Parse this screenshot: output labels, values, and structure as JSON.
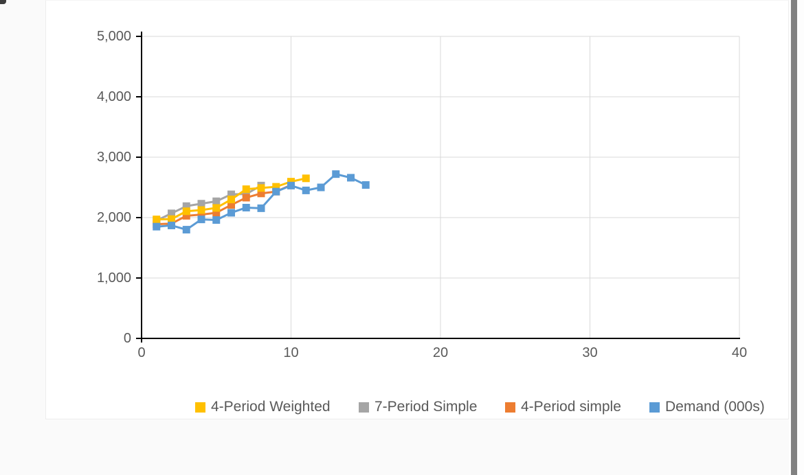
{
  "chart_data": {
    "type": "line",
    "title": "",
    "xlabel": "",
    "ylabel": "",
    "xlim": [
      0,
      40
    ],
    "ylim": [
      0,
      5000
    ],
    "grid": true,
    "legend_position": "bottom",
    "x_ticks": [
      0,
      10,
      20,
      30,
      40
    ],
    "x_tick_labels": [
      "0",
      "10",
      "20",
      "30",
      "40"
    ],
    "y_ticks": [
      0,
      1000,
      2000,
      3000,
      4000,
      5000
    ],
    "y_tick_labels": [
      "0",
      "1,000",
      "2,000",
      "3,000",
      "4,000",
      "5,000"
    ],
    "marker": "square",
    "colors": {
      "gridline": "#d9d9d9",
      "axis": "#000000",
      "label_text": "#595959"
    },
    "series": [
      {
        "name": "4-Period Weighted",
        "color": "#FFC000",
        "x": [
          1,
          2,
          3,
          4,
          5,
          6,
          7,
          8,
          9,
          10,
          11
        ],
        "values": [
          1970,
          1975,
          2105,
          2125,
          2160,
          2300,
          2470,
          2490,
          2510,
          2595,
          2650
        ]
      },
      {
        "name": "7-Period Simple",
        "color": "#A5A5A5",
        "x": [
          1,
          2,
          3,
          4,
          5,
          6,
          7,
          8
        ],
        "values": [
          1950,
          2070,
          2190,
          2230,
          2270,
          2385,
          2390,
          2530
        ]
      },
      {
        "name": "4-Period simple",
        "color": "#ED7D31",
        "x": [
          1,
          2,
          3,
          4,
          5,
          6,
          7,
          8,
          9,
          10
        ],
        "values": [
          1890,
          1900,
          2030,
          2050,
          2080,
          2210,
          2330,
          2400,
          2430,
          2540
        ]
      },
      {
        "name": "Demand (000s)",
        "color": "#5B9BD5",
        "x": [
          1,
          2,
          3,
          4,
          5,
          6,
          7,
          8,
          9,
          10,
          11,
          12,
          13,
          14,
          15
        ],
        "values": [
          1850,
          1870,
          1800,
          1970,
          1960,
          2080,
          2165,
          2155,
          2430,
          2530,
          2450,
          2500,
          2720,
          2660,
          2540
        ]
      }
    ]
  }
}
